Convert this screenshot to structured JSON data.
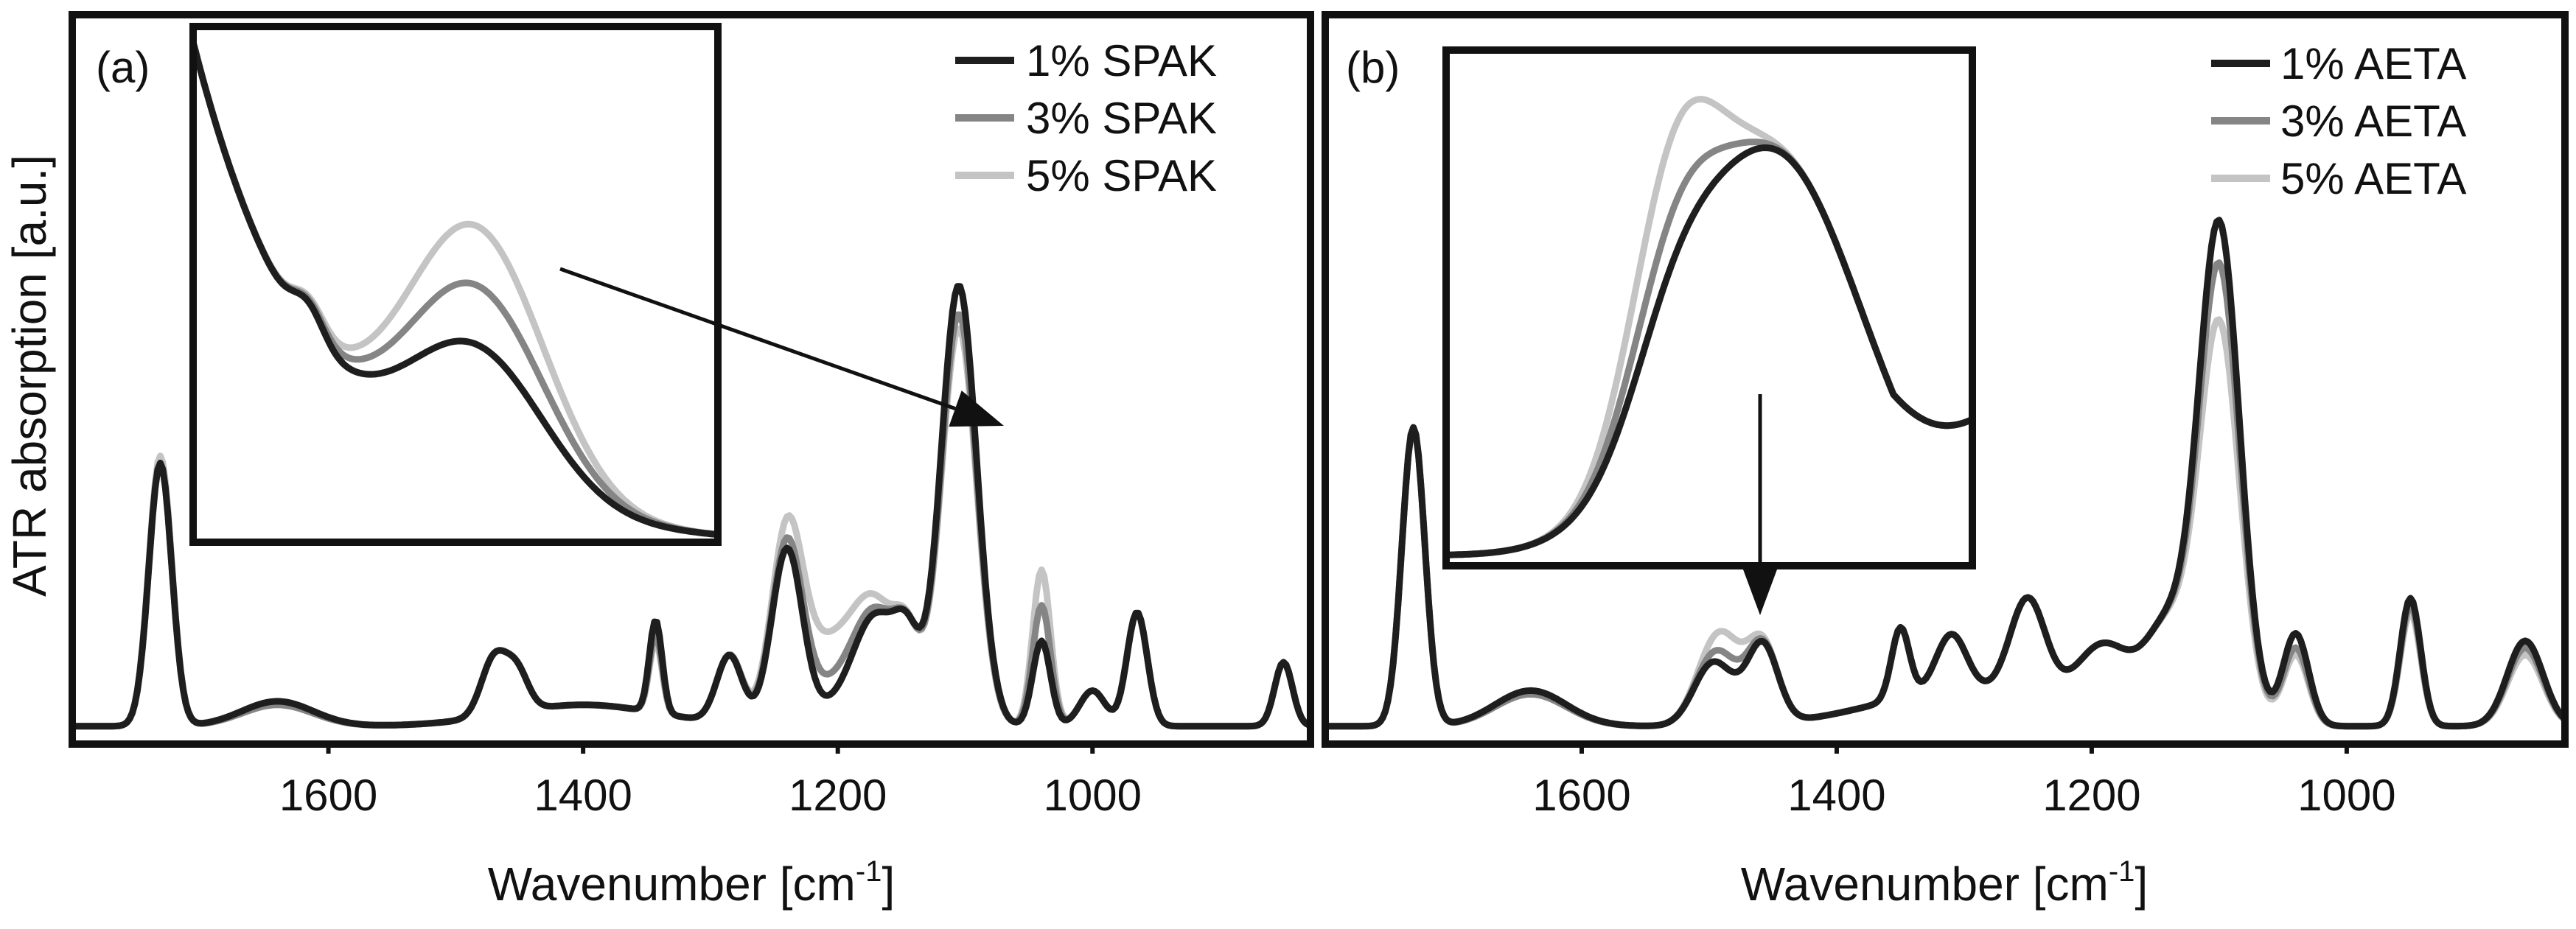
{
  "figure": {
    "ylabel": "ATR absorption [a.u.]",
    "colors": {
      "series1": "#1e1e1e",
      "series2": "#858585",
      "series3": "#c4c4c4",
      "frame": "#111111"
    }
  },
  "chart_data": [
    {
      "type": "line",
      "panel_label": "(a)",
      "xlabel_main": "Wavenumber [cm",
      "xlabel_sup": "-1",
      "xlabel_end": "]",
      "ylabel": "ATR absorption [a.u.]",
      "xlim": [
        1800,
        830
      ],
      "ylim": [
        0,
        1
      ],
      "x_reversed": true,
      "xticks": [
        1600,
        1400,
        1200,
        1000
      ],
      "legend_position": "top-right",
      "series": [
        {
          "name": "1% SPAK",
          "peak_amps": [
            0.37,
            0.035,
            0.08,
            0.055,
            0.13,
            0.095,
            0.24,
            0.15,
            0.09,
            0.62,
            0.12,
            0.05,
            0.16,
            0.09
          ],
          "shoulder_1210": 0.02
        },
        {
          "name": "3% SPAK",
          "peak_amps": [
            0.37,
            0.03,
            0.08,
            0.055,
            0.11,
            0.095,
            0.24,
            0.15,
            0.09,
            0.58,
            0.17,
            0.05,
            0.16,
            0.09
          ],
          "shoulder_1210": 0.05
        },
        {
          "name": "5% SPAK",
          "peak_amps": [
            0.38,
            0.03,
            0.08,
            0.055,
            0.1,
            0.095,
            0.24,
            0.15,
            0.09,
            0.56,
            0.22,
            0.05,
            0.16,
            0.09
          ],
          "shoulder_1210": 0.11
        }
      ],
      "inset": {
        "xlim": [
          1100,
          1000
        ],
        "arrow_target": 1040
      }
    },
    {
      "type": "line",
      "panel_label": "(b)",
      "xlabel_main": "Wavenumber [cm",
      "xlabel_sup": "-1",
      "xlabel_end": "]",
      "xlim": [
        1800,
        830
      ],
      "ylim": [
        0,
        1
      ],
      "x_reversed": true,
      "xticks": [
        1600,
        1400,
        1200,
        1000
      ],
      "legend_position": "top-right",
      "series": [
        {
          "name": "1% AETA",
          "peak_amps": [
            0.42,
            0.05,
            0.07,
            0.11,
            0.1,
            0.08,
            0.14,
            0.1,
            0.13,
            0.7,
            0.13,
            0.18,
            0.12
          ],
          "shoulder_1480": 0.03
        },
        {
          "name": "3% AETA",
          "peak_amps": [
            0.42,
            0.045,
            0.07,
            0.11,
            0.1,
            0.08,
            0.14,
            0.1,
            0.13,
            0.64,
            0.11,
            0.17,
            0.11
          ],
          "shoulder_1480": 0.05
        },
        {
          "name": "5% AETA",
          "peak_amps": [
            0.42,
            0.045,
            0.07,
            0.11,
            0.1,
            0.08,
            0.14,
            0.1,
            0.13,
            0.56,
            0.1,
            0.16,
            0.1
          ],
          "shoulder_1480": 0.08
        }
      ],
      "inset": {
        "xlim": [
          1540,
          1380
        ],
        "arrow_target": 1455
      }
    }
  ]
}
